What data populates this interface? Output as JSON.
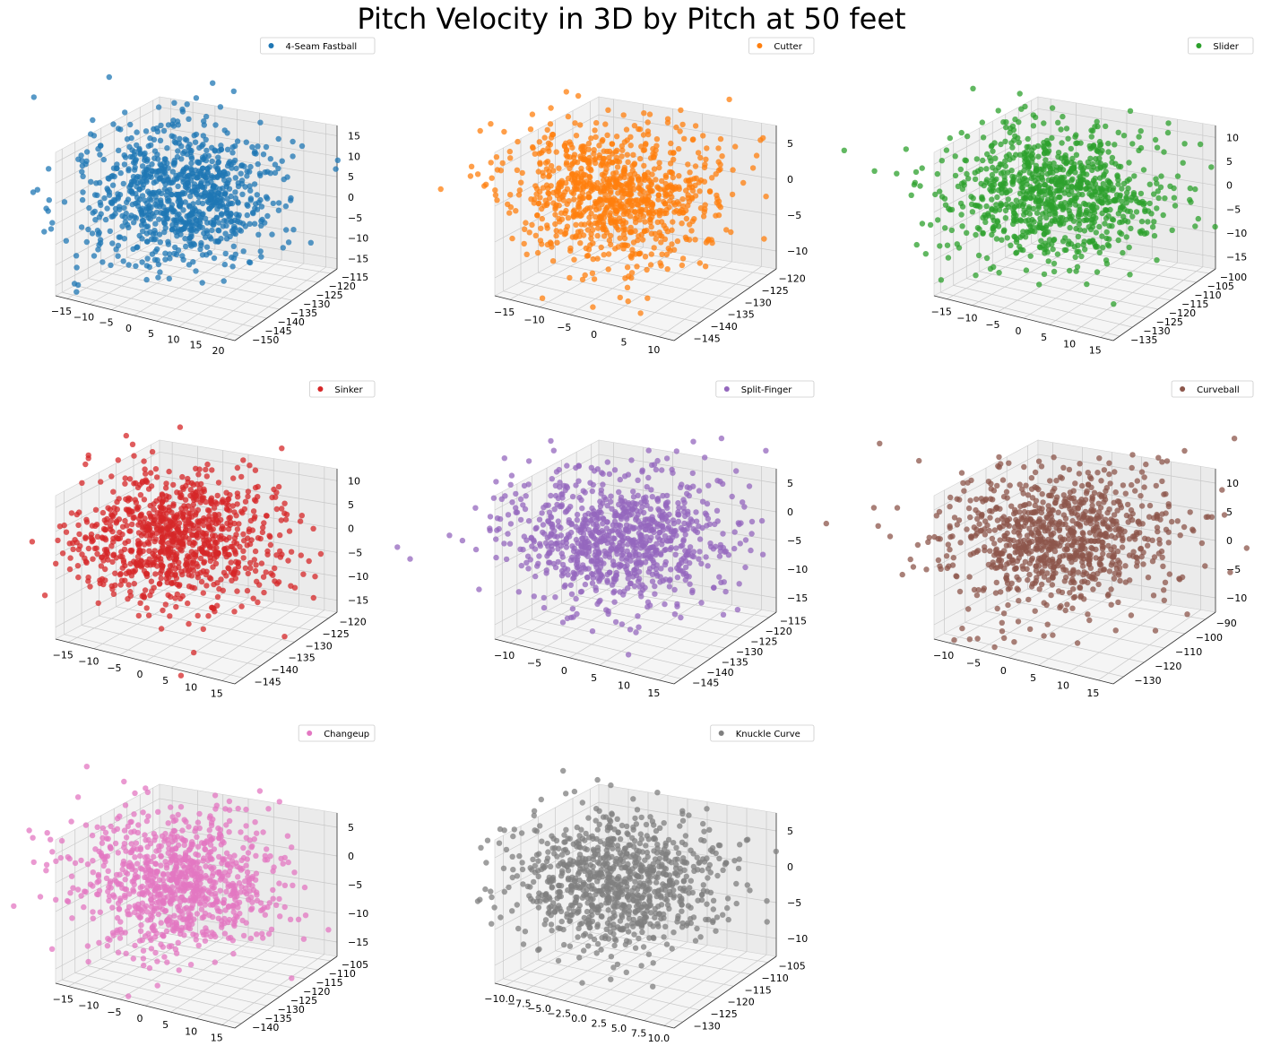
{
  "figure": {
    "title": "Pitch Velocity in 3D by Pitch at 50 feet"
  },
  "chart_data": [
    {
      "type": "scatter",
      "title": "",
      "series": [
        {
          "name": "4-Seam Fastball",
          "color": "#1f77b4"
        }
      ],
      "x_ticks": [
        "−15",
        "−10",
        "−5",
        "0",
        "5",
        "10",
        "15",
        "20"
      ],
      "y_ticks": [
        "−115",
        "−120",
        "−125",
        "−130",
        "−135",
        "−140",
        "−145",
        "−150"
      ],
      "z_ticks": [
        "15",
        "10",
        "5",
        "0",
        "−5",
        "−10",
        "−15"
      ],
      "xlim": [
        -18,
        20
      ],
      "ylim": [
        -150,
        -115
      ],
      "zlim": [
        -18,
        15
      ]
    },
    {
      "type": "scatter",
      "title": "",
      "series": [
        {
          "name": "Cutter",
          "color": "#ff7f0e"
        }
      ],
      "x_ticks": [
        "−15",
        "−10",
        "−5",
        "0",
        "5",
        "10"
      ],
      "y_ticks": [
        "−120",
        "−125",
        "−130",
        "−135",
        "−140",
        "−145"
      ],
      "z_ticks": [
        "5",
        "0",
        "−5",
        "−10"
      ],
      "xlim": [
        -18,
        12
      ],
      "ylim": [
        -145,
        -120
      ],
      "zlim": [
        -14,
        8
      ]
    },
    {
      "type": "scatter",
      "title": "",
      "series": [
        {
          "name": "Slider",
          "color": "#2ca02c"
        }
      ],
      "x_ticks": [
        "−15",
        "−10",
        "−5",
        "0",
        "5",
        "10",
        "15"
      ],
      "y_ticks": [
        "−100",
        "−105",
        "−110",
        "−115",
        "−120",
        "−125",
        "−130",
        "−135"
      ],
      "z_ticks": [
        "10",
        "5",
        "0",
        "−5",
        "−10",
        "−15"
      ],
      "xlim": [
        -16,
        15
      ],
      "ylim": [
        -135,
        -100
      ],
      "zlim": [
        -18,
        12
      ]
    },
    {
      "type": "scatter",
      "title": "",
      "series": [
        {
          "name": "Sinker",
          "color": "#d62728"
        }
      ],
      "x_ticks": [
        "−15",
        "−10",
        "−5",
        "0",
        "5",
        "10",
        "15"
      ],
      "y_ticks": [
        "−120",
        "−125",
        "−130",
        "−135",
        "−140",
        "−145"
      ],
      "z_ticks": [
        "10",
        "5",
        "0",
        "−5",
        "−10",
        "−15"
      ],
      "xlim": [
        -18,
        17
      ],
      "ylim": [
        -145,
        -120
      ],
      "zlim": [
        -18,
        12
      ]
    },
    {
      "type": "scatter",
      "title": "",
      "series": [
        {
          "name": "Split-Finger",
          "color": "#9467bd"
        }
      ],
      "x_ticks": [
        "−10",
        "−5",
        "0",
        "5",
        "10",
        "15"
      ],
      "y_ticks": [
        "−115",
        "−120",
        "−125",
        "−130",
        "−135",
        "−140",
        "−145"
      ],
      "z_ticks": [
        "5",
        "0",
        "−5",
        "−10",
        "−15"
      ],
      "xlim": [
        -10,
        15
      ],
      "ylim": [
        -145,
        -115
      ],
      "zlim": [
        -18,
        6
      ]
    },
    {
      "type": "scatter",
      "title": "",
      "series": [
        {
          "name": "Curveball",
          "color": "#8c564b"
        }
      ],
      "x_ticks": [
        "−10",
        "−5",
        "0",
        "5",
        "10",
        "15"
      ],
      "y_ticks": [
        "−90",
        "−100",
        "−110",
        "−120",
        "−130"
      ],
      "z_ticks": [
        "10",
        "5",
        "0",
        "−5",
        "−10"
      ],
      "xlim": [
        -12,
        15
      ],
      "ylim": [
        -130,
        -88
      ],
      "zlim": [
        -14,
        11
      ]
    },
    {
      "type": "scatter",
      "title": "",
      "series": [
        {
          "name": "Changeup",
          "color": "#e377c2"
        }
      ],
      "x_ticks": [
        "−15",
        "−10",
        "−5",
        "0",
        "5",
        "10",
        "15"
      ],
      "y_ticks": [
        "−105",
        "−110",
        "−115",
        "−120",
        "−125",
        "−130",
        "−135",
        "−140"
      ],
      "z_ticks": [
        "5",
        "0",
        "−5",
        "−10",
        "−15"
      ],
      "xlim": [
        -18,
        15
      ],
      "ylim": [
        -140,
        -105
      ],
      "zlim": [
        -18,
        8
      ]
    },
    {
      "type": "scatter",
      "title": "",
      "series": [
        {
          "name": "Knuckle Curve",
          "color": "#7f7f7f"
        }
      ],
      "x_ticks": [
        "−10.0",
        "−7.5",
        "−5.0",
        "−2.5",
        "0.0",
        "2.5",
        "5.0",
        "7.5",
        "10.0"
      ],
      "y_ticks": [
        "−105",
        "−110",
        "−115",
        "−120",
        "−125",
        "−130"
      ],
      "z_ticks": [
        "5",
        "0",
        "−5",
        "−10"
      ],
      "xlim": [
        -10,
        10
      ],
      "ylim": [
        -130,
        -105
      ],
      "zlim": [
        -14,
        8
      ]
    }
  ]
}
